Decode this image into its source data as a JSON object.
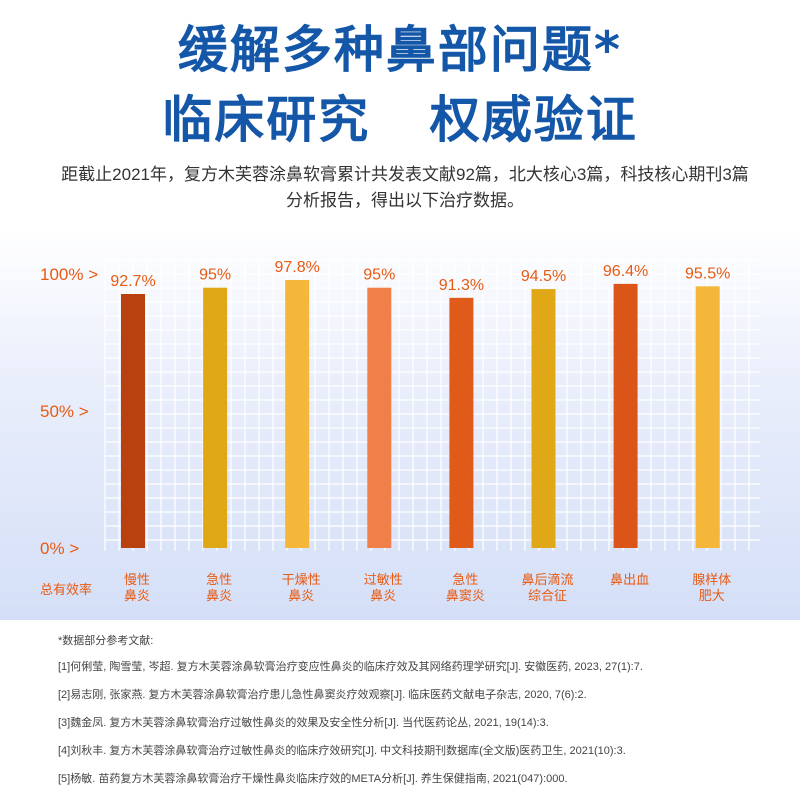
{
  "header": {
    "title_line1": "缓解多种鼻部问题*",
    "title_line2": "临床研究 权威验证",
    "subtitle": "距截止2021年，复方木芙蓉涂鼻软膏累计共发表文献92篇，北大核心3篇，科技核心期刊3篇分析报告，得出以下治疗数据。"
  },
  "chart_data": {
    "type": "bar",
    "categories": [
      [
        "慢性",
        "鼻炎"
      ],
      [
        "急性",
        "鼻炎"
      ],
      [
        "干燥性",
        "鼻炎"
      ],
      [
        "过敏性",
        "鼻炎"
      ],
      [
        "急性",
        "鼻窦炎"
      ],
      [
        "鼻后滴流",
        "综合征"
      ],
      [
        "鼻出血"
      ],
      [
        "腺样体",
        "肥大"
      ]
    ],
    "values": [
      92.7,
      95,
      97.8,
      95,
      91.3,
      94.5,
      96.4,
      95.5
    ],
    "value_labels": [
      "92.7%",
      "95%",
      "97.8%",
      "95%",
      "91.3%",
      "94.5%",
      "96.4%",
      "95.5%"
    ],
    "bar_colors": [
      "#b8410f",
      "#e0a817",
      "#f4b73a",
      "#f07f4a",
      "#e05a1a",
      "#e0a817",
      "#dc5518",
      "#f4b73a"
    ],
    "ylim": [
      0,
      100
    ],
    "ytick_labels": [
      "0%  >",
      "50%  >",
      "100% >"
    ],
    "ytick_values": [
      0,
      50,
      100
    ],
    "row_label": "总有效率",
    "grid": true,
    "accent_color": "#e85a12"
  },
  "references": {
    "title": "*数据部分参考文献:",
    "items": [
      "[1]何俐莹, 陶雪莹, 岑超. 复方木芙蓉涂鼻软膏治疗变应性鼻炎的临床疗效及其网络药理学研究[J]. 安徽医药, 2023, 27(1):7.",
      "[2]易志刚, 张家燕. 复方木芙蓉涂鼻软膏治疗患儿急性鼻窦炎疗效观察[J]. 临床医药文献电子杂志, 2020, 7(6):2.",
      "[3]魏金凤. 复方木芙蓉涂鼻软膏治疗过敏性鼻炎的效果及安全性分析[J]. 当代医药论丛, 2021, 19(14):3.",
      "[4]刘秋丰. 复方木芙蓉涂鼻软膏治疗过敏性鼻炎的临床疗效研究[J]. 中文科技期刊数据库(全文版)医药卫生, 2021(10):3.",
      "[5]杨敏. 苗药复方木芙蓉涂鼻软膏治疗干燥性鼻炎临床疗效的META分析[J]. 养生保健指南, 2021(047):000."
    ]
  }
}
